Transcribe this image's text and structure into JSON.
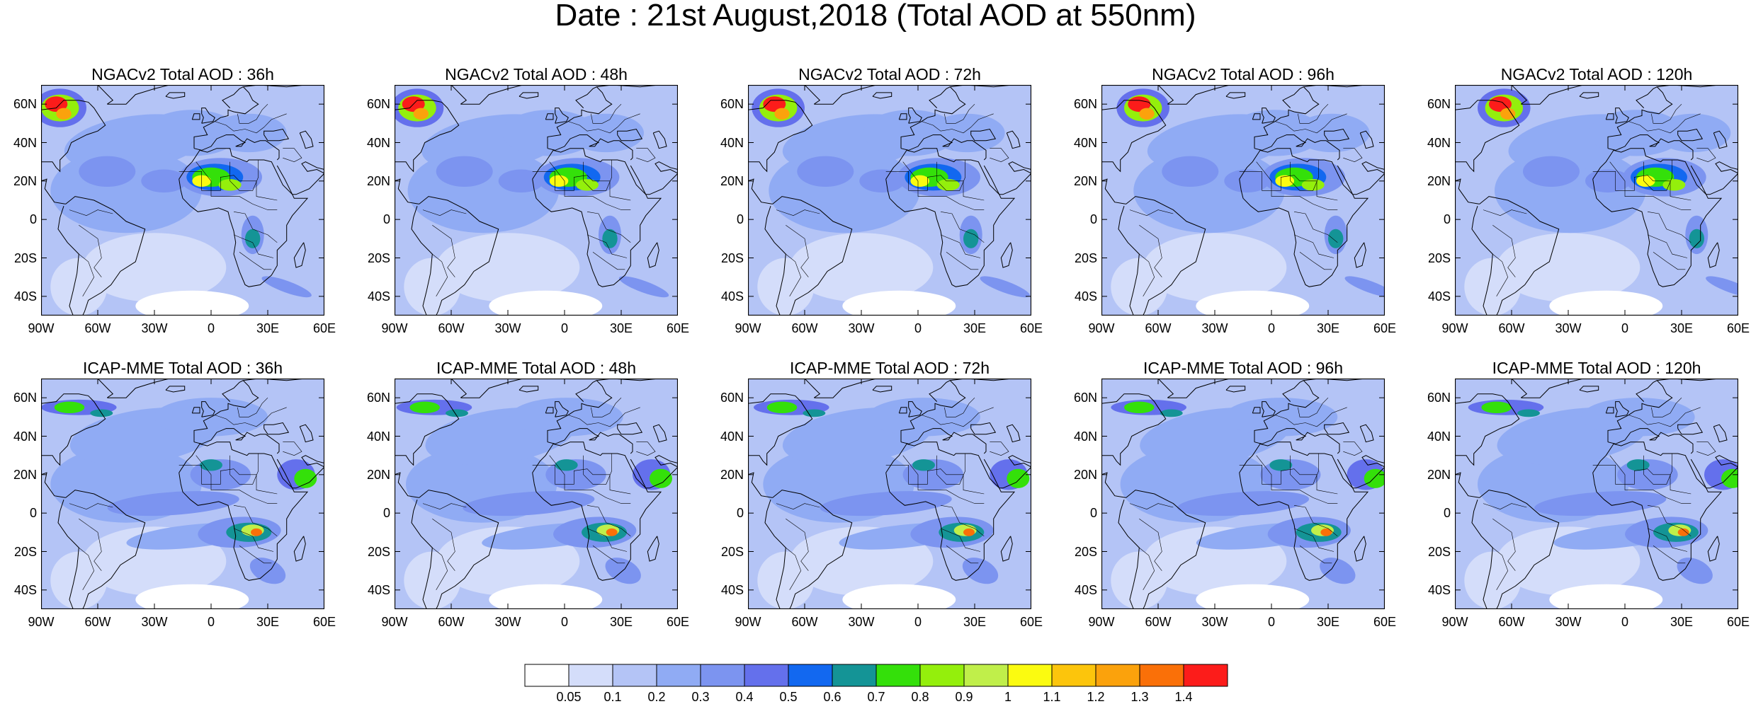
{
  "title": "Date : 21st August,2018 (Total AOD at 550nm)",
  "rows": [
    {
      "model": "NGACv2",
      "panels": [
        {
          "title": "NGACv2 Total AOD : 36h",
          "lead": "36h"
        },
        {
          "title": "NGACv2 Total AOD : 48h",
          "lead": "48h"
        },
        {
          "title": "NGACv2 Total AOD : 72h",
          "lead": "72h"
        },
        {
          "title": "NGACv2 Total AOD : 96h",
          "lead": "96h"
        },
        {
          "title": "NGACv2 Total AOD : 120h",
          "lead": "120h"
        }
      ]
    },
    {
      "model": "ICAP-MME",
      "panels": [
        {
          "title": "ICAP-MME Total AOD : 36h",
          "lead": "36h"
        },
        {
          "title": "ICAP-MME Total AOD : 48h",
          "lead": "48h"
        },
        {
          "title": "ICAP-MME Total AOD : 72h",
          "lead": "72h"
        },
        {
          "title": "ICAP-MME Total AOD : 96h",
          "lead": "96h"
        },
        {
          "title": "ICAP-MME Total AOD : 120h",
          "lead": "120h"
        }
      ]
    }
  ],
  "map": {
    "lon_range": [
      -90,
      60
    ],
    "lat_range": [
      -50,
      70
    ],
    "lon_ticks": [
      {
        "value": -90,
        "label": "90W"
      },
      {
        "value": -60,
        "label": "60W"
      },
      {
        "value": -30,
        "label": "30W"
      },
      {
        "value": 0,
        "label": "0"
      },
      {
        "value": 30,
        "label": "30E"
      },
      {
        "value": 60,
        "label": "60E"
      }
    ],
    "lat_ticks": [
      {
        "value": 60,
        "label": "60N"
      },
      {
        "value": 40,
        "label": "40N"
      },
      {
        "value": 20,
        "label": "20N"
      },
      {
        "value": 0,
        "label": "0"
      },
      {
        "value": -20,
        "label": "20S"
      },
      {
        "value": -40,
        "label": "40S"
      }
    ]
  },
  "colorbar": {
    "levels": [
      "0.05",
      "0.1",
      "0.2",
      "0.3",
      "0.4",
      "0.5",
      "0.6",
      "0.7",
      "0.8",
      "0.9",
      "1",
      "1.1",
      "1.2",
      "1.3",
      "1.4"
    ],
    "colors": [
      "#ffffff",
      "#d4ddfa",
      "#b4c4f6",
      "#90abf4",
      "#7c94f0",
      "#6470ec",
      "#1268f0",
      "#149496",
      "#34e00a",
      "#94ef0c",
      "#c0ef4a",
      "#fbfb10",
      "#fcc50c",
      "#fba20c",
      "#fa7008",
      "#fc1c1a"
    ]
  }
}
